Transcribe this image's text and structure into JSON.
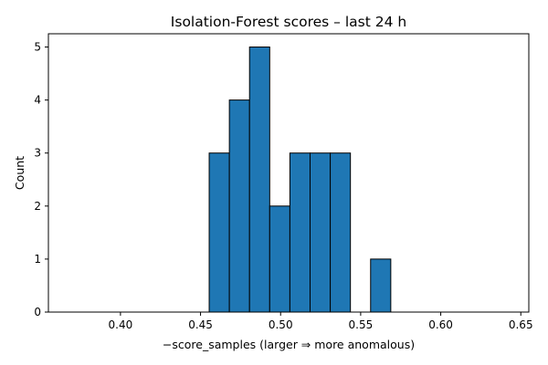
{
  "chart_data": {
    "type": "bar",
    "title": "Isolation-Forest scores – last 24 h",
    "xlabel": "−score_samples  (larger ⇒ more anomalous)",
    "ylabel": "Count",
    "xlim": [
      0.355,
      0.655
    ],
    "ylim": [
      0,
      5.25
    ],
    "xticks": [
      0.4,
      0.45,
      0.5,
      0.55,
      0.6,
      0.65
    ],
    "xtick_labels": [
      "0.40",
      "0.45",
      "0.50",
      "0.55",
      "0.60",
      "0.65"
    ],
    "yticks": [
      0,
      1,
      2,
      3,
      4,
      5
    ],
    "ytick_labels": [
      "0",
      "1",
      "2",
      "3",
      "4",
      "5"
    ],
    "bin_edges": [
      0.4554,
      0.468,
      0.4806,
      0.4932,
      0.5058,
      0.5184,
      0.531,
      0.5436,
      0.5562,
      0.5688
    ],
    "counts": [
      3,
      4,
      5,
      2,
      3,
      3,
      3,
      0,
      1
    ],
    "bar_color": "#1f77b4",
    "edge_color": "#000000",
    "grid": false
  }
}
